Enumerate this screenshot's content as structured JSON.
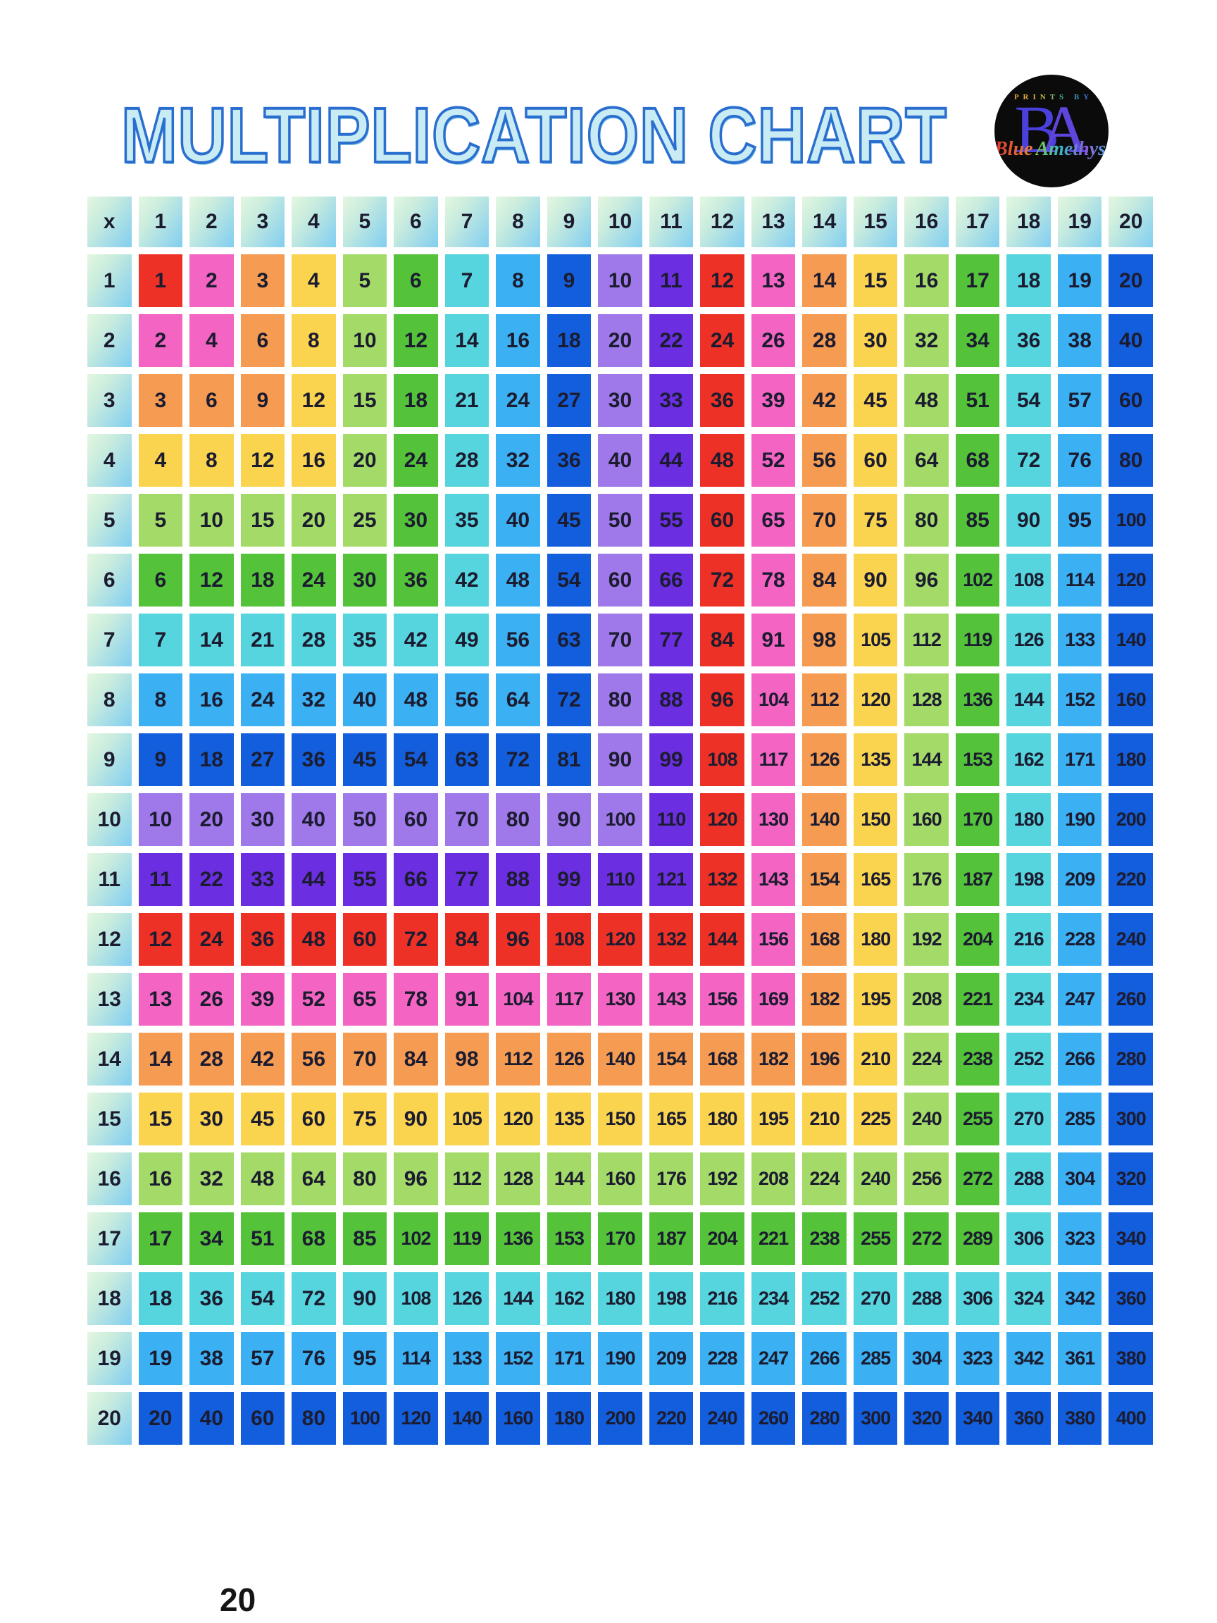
{
  "title": "MULTIPLICATION CHART",
  "page_number": "20",
  "logo": {
    "prints_by": "PRINTS BY",
    "initial_b": "B",
    "initial_a": "A",
    "script_blue": "Blue",
    "script_amethyst": "Amethyst"
  },
  "colors": {
    "title_fill": "#c9ecf4",
    "title_stroke": "#2a6fd0",
    "cell_text": "#1c1c30",
    "header_gradient_start": "#e3f7e0",
    "header_gradient_end": "#86d0ef",
    "logo_background": "#0b0b0c",
    "palette_cycle": [
      "#ee3126",
      "#f464c2",
      "#f59b52",
      "#fbd44f",
      "#a4db68",
      "#54c33a",
      "#56d5de",
      "#3bb0f2",
      "#135edc",
      "#9f79ea",
      "#6b2ee0"
    ]
  },
  "chart_data": {
    "type": "table",
    "title": "MULTIPLICATION CHART",
    "corner_label": "x",
    "cell_color_rule": "background = palette_cycle[(max(row,col)-1) mod 11]",
    "column_headers": [
      1,
      2,
      3,
      4,
      5,
      6,
      7,
      8,
      9,
      10,
      11,
      12,
      13,
      14,
      15,
      16,
      17,
      18,
      19,
      20
    ],
    "row_headers": [
      1,
      2,
      3,
      4,
      5,
      6,
      7,
      8,
      9,
      10,
      11,
      12,
      13,
      14,
      15,
      16,
      17,
      18,
      19,
      20
    ],
    "rows": [
      [
        1,
        2,
        3,
        4,
        5,
        6,
        7,
        8,
        9,
        10,
        11,
        12,
        13,
        14,
        15,
        16,
        17,
        18,
        19,
        20
      ],
      [
        2,
        4,
        6,
        8,
        10,
        12,
        14,
        16,
        18,
        20,
        22,
        24,
        26,
        28,
        30,
        32,
        34,
        36,
        38,
        40
      ],
      [
        3,
        6,
        9,
        12,
        15,
        18,
        21,
        24,
        27,
        30,
        33,
        36,
        39,
        42,
        45,
        48,
        51,
        54,
        57,
        60
      ],
      [
        4,
        8,
        12,
        16,
        20,
        24,
        28,
        32,
        36,
        40,
        44,
        48,
        52,
        56,
        60,
        64,
        68,
        72,
        76,
        80
      ],
      [
        5,
        10,
        15,
        20,
        25,
        30,
        35,
        40,
        45,
        50,
        55,
        60,
        65,
        70,
        75,
        80,
        85,
        90,
        95,
        100
      ],
      [
        6,
        12,
        18,
        24,
        30,
        36,
        42,
        48,
        54,
        60,
        66,
        72,
        78,
        84,
        90,
        96,
        102,
        108,
        114,
        120
      ],
      [
        7,
        14,
        21,
        28,
        35,
        42,
        49,
        56,
        63,
        70,
        77,
        84,
        91,
        98,
        105,
        112,
        119,
        126,
        133,
        140
      ],
      [
        8,
        16,
        24,
        32,
        40,
        48,
        56,
        64,
        72,
        80,
        88,
        96,
        104,
        112,
        120,
        128,
        136,
        144,
        152,
        160
      ],
      [
        9,
        18,
        27,
        36,
        45,
        54,
        63,
        72,
        81,
        90,
        99,
        108,
        117,
        126,
        135,
        144,
        153,
        162,
        171,
        180
      ],
      [
        10,
        20,
        30,
        40,
        50,
        60,
        70,
        80,
        90,
        100,
        110,
        120,
        130,
        140,
        150,
        160,
        170,
        180,
        190,
        200
      ],
      [
        11,
        22,
        33,
        44,
        55,
        66,
        77,
        88,
        99,
        110,
        121,
        132,
        143,
        154,
        165,
        176,
        187,
        198,
        209,
        220
      ],
      [
        12,
        24,
        36,
        48,
        60,
        72,
        84,
        96,
        108,
        120,
        132,
        144,
        156,
        168,
        180,
        192,
        204,
        216,
        228,
        240
      ],
      [
        13,
        26,
        39,
        52,
        65,
        78,
        91,
        104,
        117,
        130,
        143,
        156,
        169,
        182,
        195,
        208,
        221,
        234,
        247,
        260
      ],
      [
        14,
        28,
        42,
        56,
        70,
        84,
        98,
        112,
        126,
        140,
        154,
        168,
        182,
        196,
        210,
        224,
        238,
        252,
        266,
        280
      ],
      [
        15,
        30,
        45,
        60,
        75,
        90,
        105,
        120,
        135,
        150,
        165,
        180,
        195,
        210,
        225,
        240,
        255,
        270,
        285,
        300
      ],
      [
        16,
        32,
        48,
        64,
        80,
        96,
        112,
        128,
        144,
        160,
        176,
        192,
        208,
        224,
        240,
        256,
        272,
        288,
        304,
        320
      ],
      [
        17,
        34,
        51,
        68,
        85,
        102,
        119,
        136,
        153,
        170,
        187,
        204,
        221,
        238,
        255,
        272,
        289,
        306,
        323,
        340
      ],
      [
        18,
        36,
        54,
        72,
        90,
        108,
        126,
        144,
        162,
        180,
        198,
        216,
        234,
        252,
        270,
        288,
        306,
        324,
        342,
        360
      ],
      [
        19,
        38,
        57,
        76,
        95,
        114,
        133,
        152,
        171,
        190,
        209,
        228,
        247,
        266,
        285,
        304,
        323,
        342,
        361,
        380
      ],
      [
        20,
        40,
        60,
        80,
        100,
        120,
        140,
        160,
        180,
        200,
        220,
        240,
        260,
        280,
        300,
        320,
        340,
        360,
        380,
        400
      ]
    ]
  }
}
